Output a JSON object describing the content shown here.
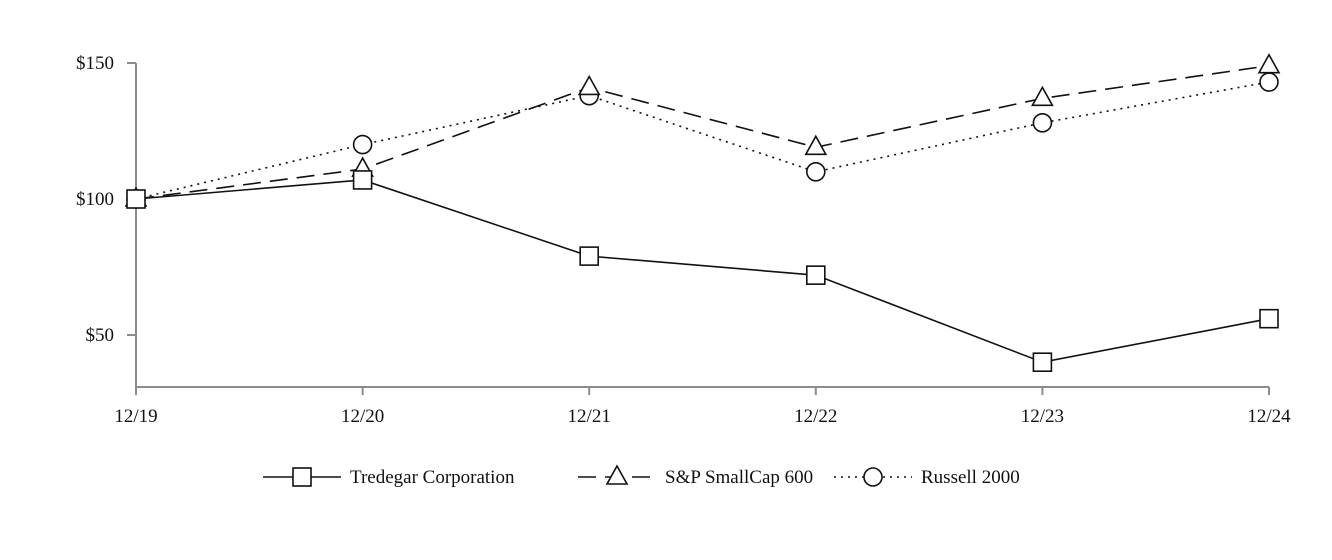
{
  "chart_data": {
    "type": "line",
    "title": "",
    "xlabel": "",
    "ylabel": "",
    "categories": [
      "12/19",
      "12/20",
      "12/21",
      "12/22",
      "12/23",
      "12/24"
    ],
    "ylim": [
      30,
      150
    ],
    "yticks": [
      50,
      100,
      150
    ],
    "ytick_labels": [
      "$50",
      "$100",
      "$150"
    ],
    "grid": false,
    "legend_position": "bottom-center",
    "series": [
      {
        "name": "Tredegar Corporation",
        "values": [
          100,
          107,
          79,
          72,
          40,
          56
        ],
        "line_style": "solid",
        "marker": "square",
        "color": "#111111"
      },
      {
        "name": "S&P SmallCap 600",
        "values": [
          100,
          111,
          141,
          119,
          137,
          149
        ],
        "line_style": "dashed",
        "marker": "triangle",
        "color": "#111111"
      },
      {
        "name": "Russell 2000",
        "values": [
          100,
          120,
          138,
          110,
          128,
          143
        ],
        "line_style": "dotted",
        "marker": "circle",
        "color": "#111111"
      }
    ]
  }
}
